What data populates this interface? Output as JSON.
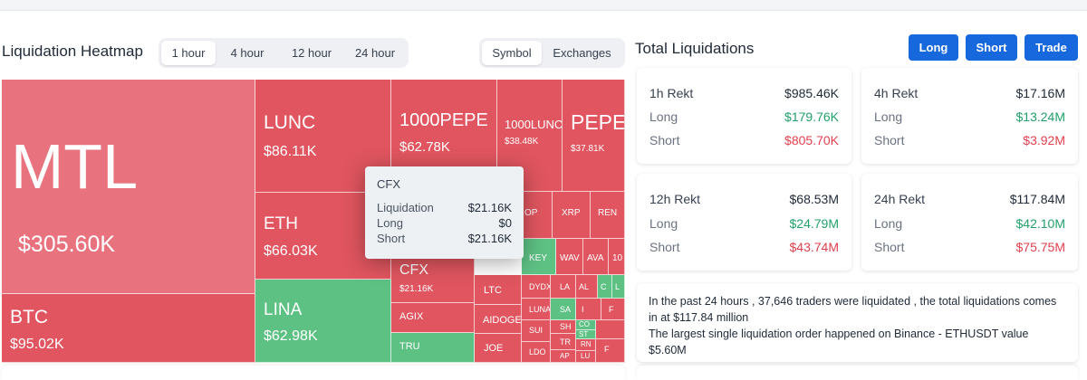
{
  "heatmap": {
    "title": "Liquidation Heatmap",
    "time_tabs": [
      "1 hour",
      "4 hour",
      "12 hour",
      "24 hour"
    ],
    "active_time_tab": "1 hour",
    "view_tabs": [
      "Symbol",
      "Exchanges"
    ],
    "active_view_tab": "Symbol",
    "cells": {
      "mtl": {
        "name": "MTL",
        "value": "$305.60K"
      },
      "btc": {
        "name": "BTC",
        "value": "$95.02K"
      },
      "lunc": {
        "name": "LUNC",
        "value": "$86.11K"
      },
      "eth": {
        "name": "ETH",
        "value": "$66.03K"
      },
      "lina": {
        "name": "LINA",
        "value": "$62.98K"
      },
      "pepe1000": {
        "name": "1000PEPE",
        "value": "$62.78K"
      },
      "lunc1000": {
        "name": "1000LUNC",
        "value": "$38.48K"
      },
      "pepe": {
        "name": "PEPE",
        "value": "$37.81K"
      },
      "cfx": {
        "name": "CFX",
        "value": "$21.16K"
      },
      "agix": {
        "name": "AGIX"
      },
      "tru": {
        "name": "TRU"
      },
      "ltc": {
        "name": "LTC"
      },
      "aidoge": {
        "name": "AIDOGE"
      },
      "joe": {
        "name": "JOE"
      },
      "op": {
        "name": "OP"
      },
      "xrp": {
        "name": "XRP"
      },
      "ren": {
        "name": "REN"
      },
      "key": {
        "name": "KEY"
      },
      "wav": {
        "name": "WAV"
      },
      "ava": {
        "name": "AVA"
      },
      "n10": {
        "name": "10"
      },
      "dydx": {
        "name": "DYDX"
      },
      "la": {
        "name": "LA"
      },
      "al": {
        "name": "AL"
      },
      "c1": {
        "name": "C"
      },
      "l1": {
        "name": "L"
      },
      "luna": {
        "name": "LUNA"
      },
      "sa": {
        "name": "SA"
      },
      "i1": {
        "name": "I"
      },
      "f1": {
        "name": "F"
      },
      "sui": {
        "name": "SUI"
      },
      "sh": {
        "name": "SH"
      },
      "co": {
        "name": "CO"
      },
      "st": {
        "name": "ST"
      },
      "ldo": {
        "name": "LDO"
      },
      "tr": {
        "name": "TR"
      },
      "rn": {
        "name": "RN"
      },
      "ap": {
        "name": "AP"
      },
      "lu": {
        "name": "LU"
      },
      "f2": {
        "name": "F"
      }
    },
    "tooltip": {
      "symbol": "CFX",
      "liquidation_label": "Liquidation",
      "liquidation_value": "$21.16K",
      "long_label": "Long",
      "long_value": "$0",
      "short_label": "Short",
      "short_value": "$21.16K"
    }
  },
  "total": {
    "title": "Total Liquidations",
    "buttons": {
      "long": "Long",
      "short": "Short",
      "trade": "Trade"
    },
    "cards": [
      {
        "period": "1h Rekt",
        "total": "$985.46K",
        "long_label": "Long",
        "long": "$179.76K",
        "short_label": "Short",
        "short": "$805.70K"
      },
      {
        "period": "4h Rekt",
        "total": "$17.16M",
        "long_label": "Long",
        "long": "$13.24M",
        "short_label": "Short",
        "short": "$3.92M"
      },
      {
        "period": "12h Rekt",
        "total": "$68.53M",
        "long_label": "Long",
        "long": "$24.79M",
        "short_label": "Short",
        "short": "$43.74M"
      },
      {
        "period": "24h Rekt",
        "total": "$117.84M",
        "long_label": "Long",
        "long": "$42.10M",
        "short_label": "Short",
        "short": "$75.75M"
      }
    ],
    "summary_line1": "In the past 24 hours , 37,646 traders were liquidated , the total liquidations comes in at $117.84 million",
    "summary_line2": "The largest single liquidation order happened on Binance - ETHUSDT value $5.60M"
  },
  "colors": {
    "accent": "#1668dc",
    "long_green": "#22a06b",
    "short_red": "#e0404f",
    "cell_red": "#e0555f",
    "cell_green": "#5ec184"
  }
}
